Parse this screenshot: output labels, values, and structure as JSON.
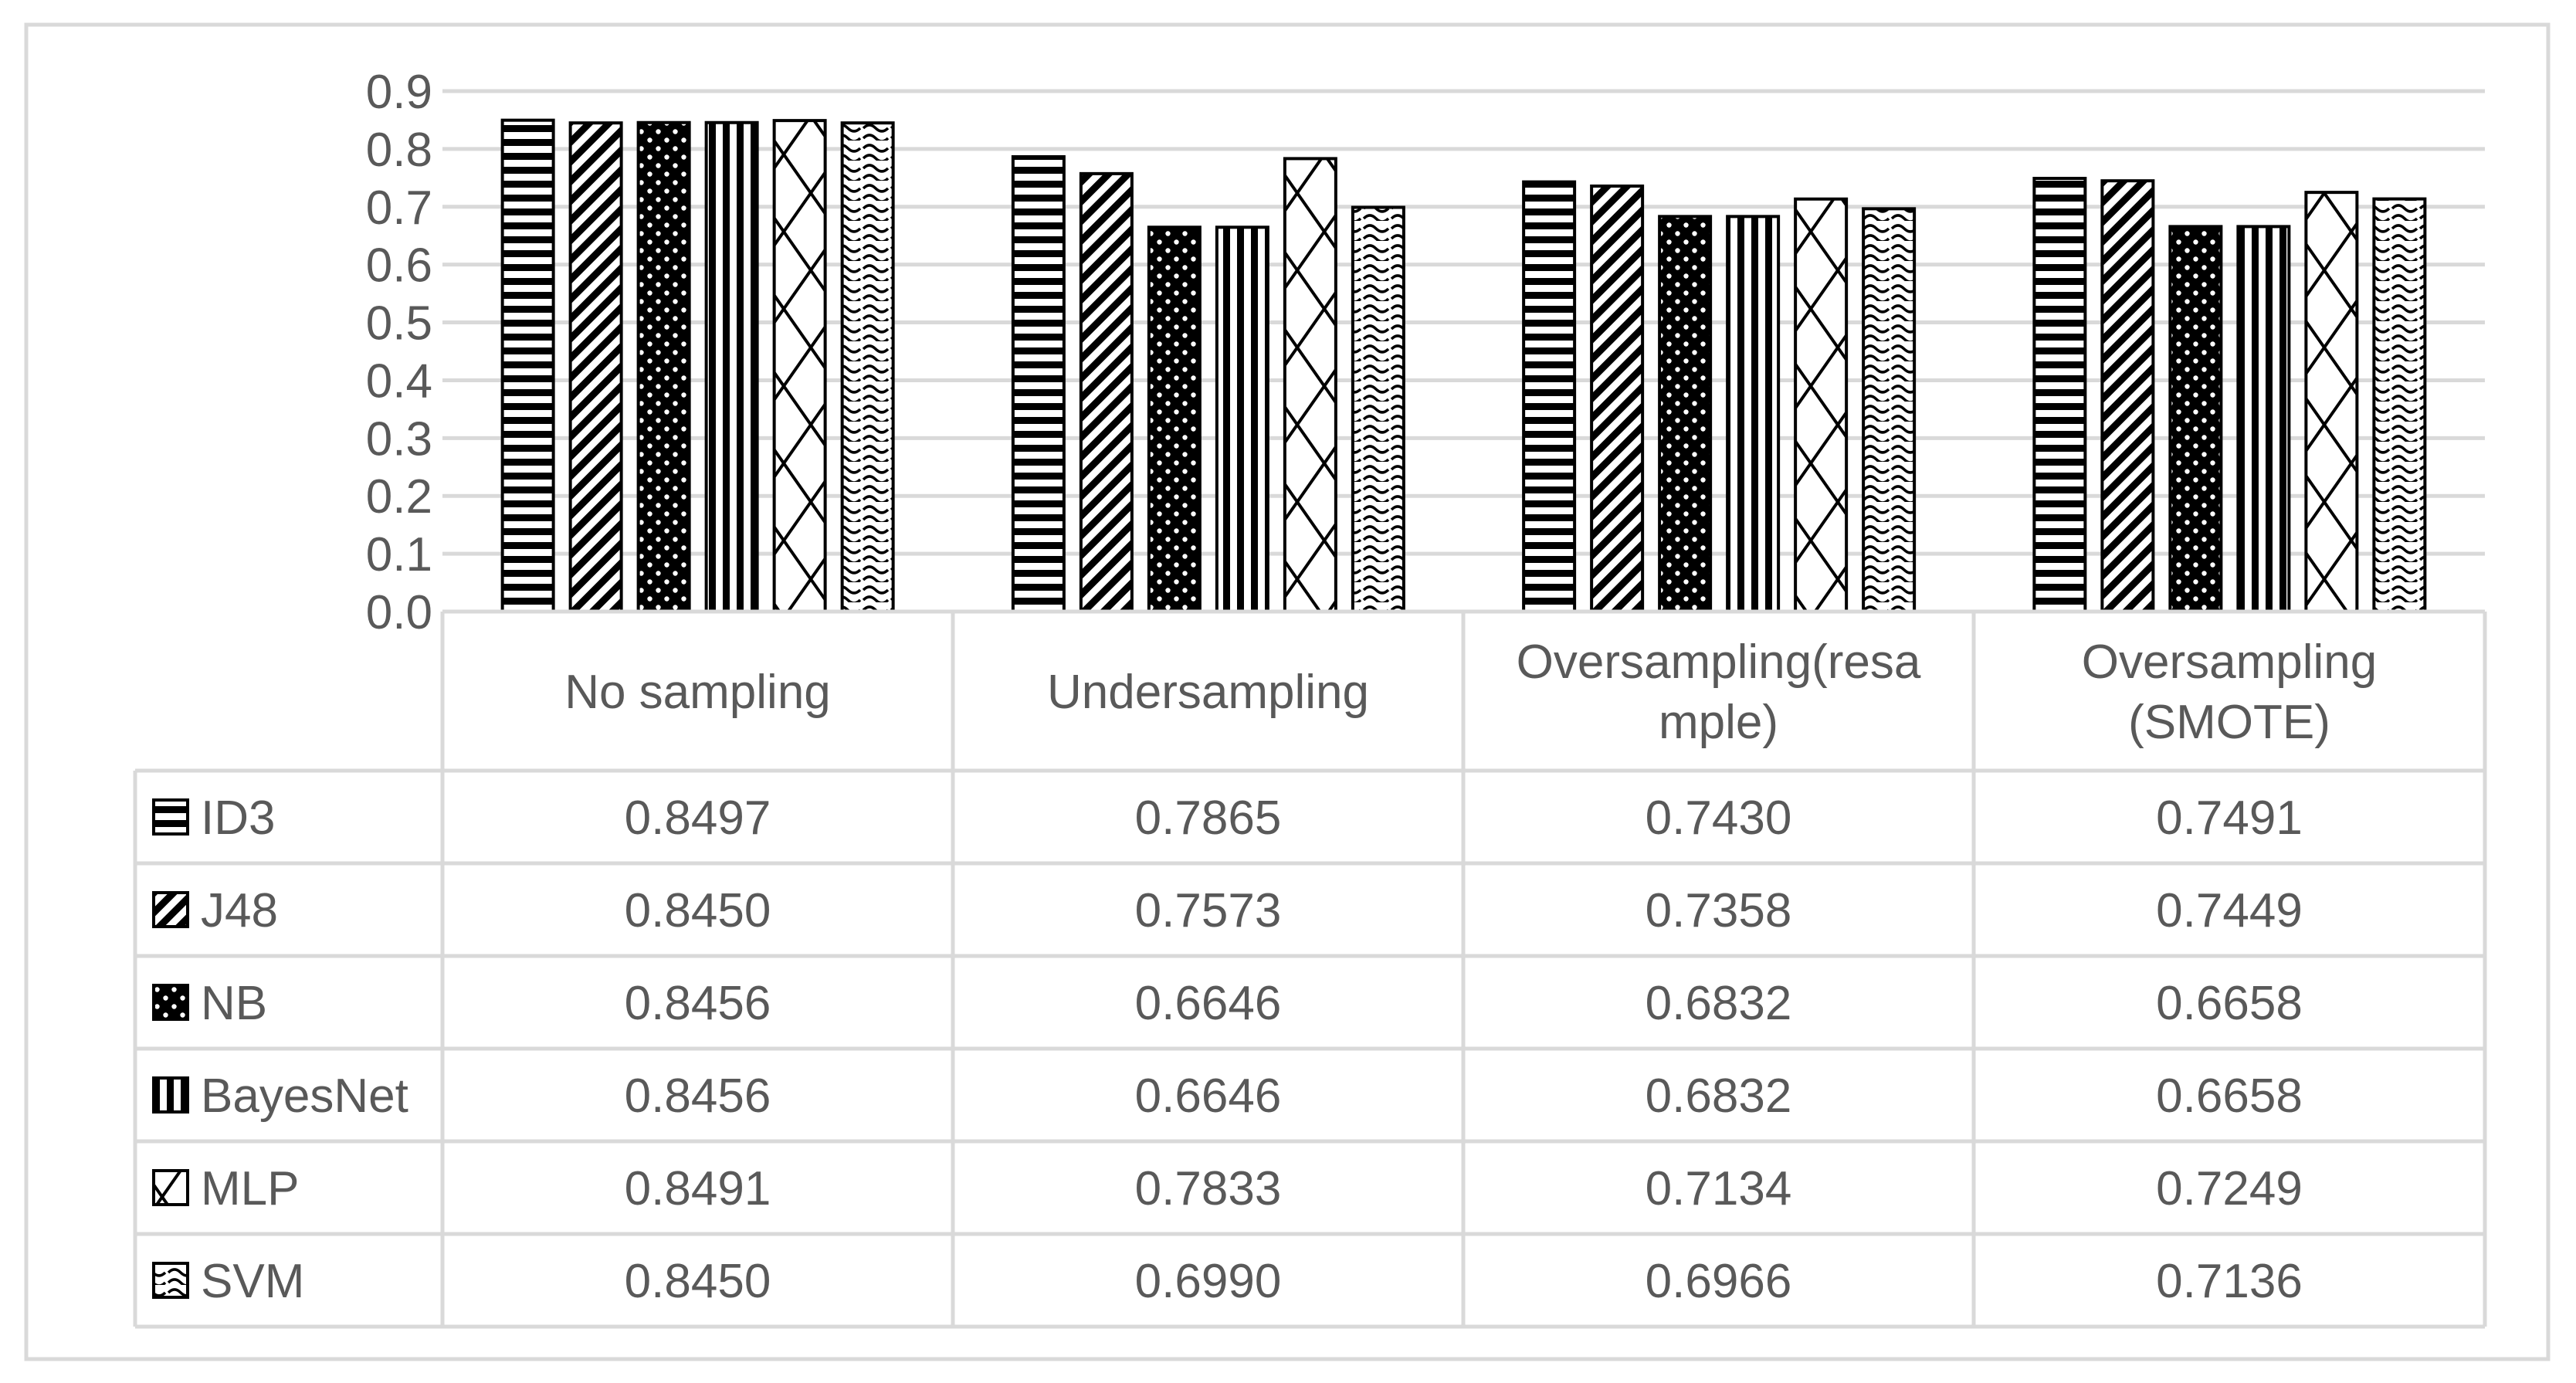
{
  "chart_data": {
    "type": "bar",
    "title": "",
    "xlabel": "",
    "ylabel": "",
    "ylim": [
      0,
      0.9
    ],
    "yticks": [
      "0.0",
      "0.1",
      "0.2",
      "0.3",
      "0.4",
      "0.5",
      "0.6",
      "0.7",
      "0.8",
      "0.9"
    ],
    "categories": [
      {
        "lines": [
          "No sampling"
        ]
      },
      {
        "lines": [
          "Undersampling"
        ]
      },
      {
        "lines": [
          "Oversampling(resa",
          "mple)"
        ]
      },
      {
        "lines": [
          "Oversampling",
          "(SMOTE)"
        ]
      }
    ],
    "series": [
      {
        "name": "ID3",
        "pattern": "horizontal-lines",
        "values": [
          0.8497,
          0.7865,
          0.743,
          0.7491
        ],
        "labels": [
          "0.8497",
          "0.7865",
          "0.7430",
          "0.7491"
        ]
      },
      {
        "name": "J48",
        "pattern": "diagonal-lines",
        "values": [
          0.845,
          0.7573,
          0.7358,
          0.7449
        ],
        "labels": [
          "0.8450",
          "0.7573",
          "0.7358",
          "0.7449"
        ]
      },
      {
        "name": "NB",
        "pattern": "dotted-grid",
        "values": [
          0.8456,
          0.6646,
          0.6832,
          0.6658
        ],
        "labels": [
          "0.8456",
          "0.6646",
          "0.6832",
          "0.6658"
        ]
      },
      {
        "name": "BayesNet",
        "pattern": "vertical-lines",
        "values": [
          0.8456,
          0.6646,
          0.6832,
          0.6658
        ],
        "labels": [
          "0.8456",
          "0.6646",
          "0.6832",
          "0.6658"
        ]
      },
      {
        "name": "MLP",
        "pattern": "zigzag",
        "values": [
          0.8491,
          0.7833,
          0.7134,
          0.7249
        ],
        "labels": [
          "0.8491",
          "0.7833",
          "0.7134",
          "0.7249"
        ]
      },
      {
        "name": "SVM",
        "pattern": "wave",
        "values": [
          0.845,
          0.699,
          0.6966,
          0.7136
        ],
        "labels": [
          "0.8450",
          "0.6990",
          "0.6966",
          "0.7136"
        ]
      }
    ],
    "grid": true,
    "legend": "data-table-below"
  }
}
